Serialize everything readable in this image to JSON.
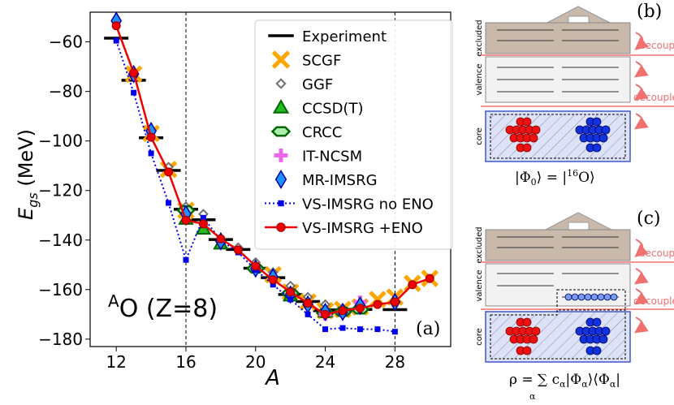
{
  "chart_data": {
    "type": "line",
    "panel_label": "(a)",
    "annotation": "O (Z=8)",
    "annotation_superscript": "A",
    "xlabel": "A",
    "ylabel_main": "E",
    "ylabel_sub": "gs",
    "ylabel_unit": " (MeV)",
    "xlim": [
      10.5,
      31.2
    ],
    "ylim": [
      -183,
      -48
    ],
    "xticks": [
      12,
      16,
      20,
      24,
      28
    ],
    "xtick_labels": [
      "12",
      "16",
      "20",
      "24",
      "28"
    ],
    "yticks": [
      -60,
      -80,
      -100,
      -120,
      -140,
      -160,
      -180
    ],
    "ytick_labels": [
      "−60",
      "−80",
      "−100",
      "−120",
      "−140",
      "−160",
      "−180"
    ],
    "vlines": [
      16,
      28
    ],
    "series": [
      {
        "name": "Experiment",
        "color": "#000000",
        "marker": "hline",
        "x": [
          12,
          13,
          14,
          15,
          16,
          17,
          18,
          19,
          20,
          21,
          22,
          23,
          24,
          25,
          26,
          28
        ],
        "y": [
          -58.5,
          -75.5,
          -98.7,
          -111.9,
          -127.6,
          -131.8,
          -139.8,
          -143.8,
          -151.4,
          -155.2,
          -162.0,
          -164.8,
          -168.5,
          -168.2,
          -168.0,
          -168.1
        ]
      },
      {
        "name": "SCGF",
        "color": "#FFA500",
        "marker": "x",
        "x": [
          13,
          14,
          15,
          16,
          21,
          22,
          23,
          24,
          25,
          26,
          27,
          28,
          29,
          30
        ],
        "y": [
          -73,
          -97,
          -111.5,
          -128,
          -154,
          -161,
          -165,
          -168.5,
          -168,
          -167,
          -164,
          -163,
          -157.5,
          -155.5
        ]
      },
      {
        "name": "GGF",
        "color": "#707070",
        "marker": "diamond-open",
        "x": [
          14,
          15,
          16,
          17,
          18,
          19,
          20,
          21,
          22,
          23,
          24,
          25,
          26
        ],
        "y": [
          -96,
          -110.5,
          -126.5,
          -129.5,
          -139.5,
          -143,
          -149,
          -153,
          -158.5,
          -163,
          -166,
          -167.5,
          -167
        ]
      },
      {
        "name": "CCSD(T)",
        "color": "#22BB22",
        "marker": "triangle",
        "x": [
          16,
          17,
          18,
          22,
          24
        ],
        "y": [
          -131.5,
          -135.5,
          -141.5,
          -162.5,
          -169
        ]
      },
      {
        "name": "CRCC",
        "color": "#22BB22",
        "marker": "hex",
        "x": [
          16,
          20,
          22,
          24,
          25,
          26
        ],
        "y": [
          -128,
          -151.5,
          -161.5,
          -169.5,
          -169,
          -168
        ]
      },
      {
        "name": "IT-NCSM",
        "color": "#EE66EE",
        "marker": "plus",
        "x": [
          24,
          26
        ],
        "y": [
          -170,
          -165
        ]
      },
      {
        "name": "MR-IMSRG",
        "color": "#1E90FF",
        "marker": "diamond",
        "x": [
          12,
          13,
          14,
          16,
          18,
          20,
          21,
          22,
          23,
          24,
          25,
          26,
          28
        ],
        "y": [
          -51.5,
          -73,
          -96,
          -129.5,
          -140.5,
          -151.5,
          -155,
          -162,
          -166,
          -169,
          -169,
          -166.5,
          -165
        ]
      },
      {
        "name": "VS-IMSRG no ENO",
        "color": "#0000EE",
        "marker": "square-dotted",
        "x": [
          12,
          13,
          14,
          15,
          16,
          17,
          18,
          19,
          20,
          21,
          22,
          23,
          24,
          25,
          26,
          27,
          28
        ],
        "y": [
          -59.5,
          -80.5,
          -105,
          -125,
          -148,
          -131,
          -140,
          -145,
          -152,
          -158,
          -164,
          -170,
          -176,
          -175.5,
          -176,
          -176,
          -177
        ]
      },
      {
        "name": "VS-IMSRG +ENO",
        "color": "#EE0000",
        "marker": "circle-line",
        "x": [
          12,
          13,
          14,
          15,
          16,
          17,
          18,
          19,
          20,
          21,
          22,
          23,
          24,
          25,
          26,
          27,
          28,
          29,
          30
        ],
        "y": [
          -53.5,
          -72.5,
          -98.5,
          -112.5,
          -132,
          -133.5,
          -139.5,
          -144,
          -150.5,
          -156,
          -161,
          -165.5,
          -170,
          -168.5,
          -167.5,
          -166,
          -165,
          -158,
          -155.5
        ]
      }
    ]
  },
  "schematic_b": {
    "label": "(b)",
    "excluded": "excluded",
    "valence": "valence",
    "core": "core",
    "decouple_1": "decouple",
    "decouple_2": "decouple",
    "formula_lhs": "|Φ",
    "formula_lhs_sub": "0",
    "formula_mid": "⟩ = |",
    "formula_sup": "16",
    "formula_rhs": "O⟩"
  },
  "schematic_c": {
    "label": "(c)",
    "excluded": "excluded",
    "valence": "valence",
    "core": "core",
    "decouple_1": "decouple",
    "decouple_2": "decouple",
    "formula": "ρ = ∑ c",
    "formula_sub": "α",
    "formula_rest": "|Φ",
    "formula_rest_sub": "α",
    "formula_end": "⟩⟨Φ",
    "formula_end_sub": "α",
    "formula_close": "|",
    "sum_sub": "α"
  },
  "colors": {
    "proton": "#ee1111",
    "neutron": "#1133dd",
    "arrow": "#f07070",
    "excluded_fill": "#c9b9ab"
  }
}
